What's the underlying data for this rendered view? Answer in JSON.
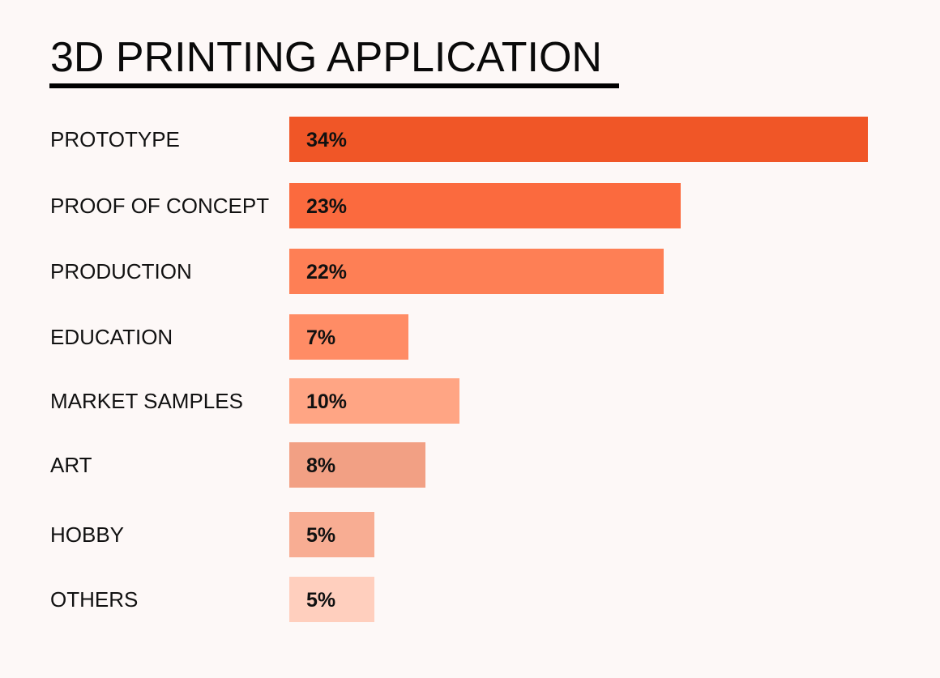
{
  "chart_data": {
    "type": "bar",
    "orientation": "horizontal",
    "title": "3D PRINTING APPLICATION",
    "categories": [
      "PROTOTYPE",
      "PROOF OF CONCEPT",
      "PRODUCTION",
      "EDUCATION",
      "MARKET SAMPLES",
      "ART",
      "HOBBY",
      "OTHERS"
    ],
    "values": [
      34,
      23,
      22,
      7,
      10,
      8,
      5,
      5
    ],
    "value_labels": [
      "34%",
      "23%",
      "22%",
      "7%",
      "10%",
      "8%",
      "5%",
      "5%"
    ],
    "unit": "%",
    "xlabel": "",
    "ylabel": "",
    "grid": false,
    "legend": "none",
    "bar_colors": [
      "#f05627",
      "#fb6a3e",
      "#fe7f55",
      "#ff8c65",
      "#ffa584",
      "#f2a084",
      "#f8ad93",
      "#ffcfbe"
    ],
    "title_underline_color": "#000000"
  }
}
